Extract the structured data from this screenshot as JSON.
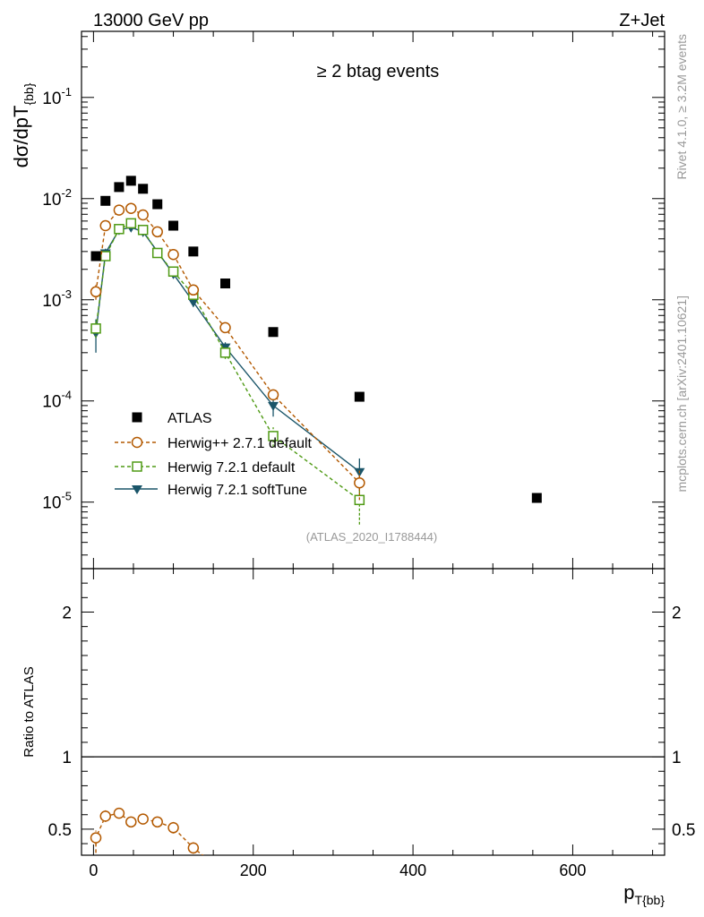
{
  "chart_data": {
    "type": "scatter",
    "header_left": "13000 GeV pp",
    "header_right": "Z+Jet",
    "title": "≥ 2 btag events",
    "ylabel_main": "dσ/dpT",
    "ylabel_main_sub": "{bb}",
    "ylabel_ratio": "Ratio to ATLAS",
    "xlabel": "p",
    "xlabel_sub": "T{bb}",
    "analysis_label": "(ATLAS_2020_I1788444)",
    "side_label_top": "Rivet 4.1.0, ≥ 3.2M events",
    "side_label_bottom": "mcplots.cern.ch [arXiv:2401.10621]",
    "x_range": [
      -15,
      715
    ],
    "y_range_main": [
      2.2e-06,
      0.45
    ],
    "y_range_ratio": [
      0.32,
      2.3
    ],
    "x_tick_labels": [
      "0",
      "200",
      "400",
      "600"
    ],
    "y_tick_labels_main": [
      "10^-5",
      "10^-4",
      "10^-3",
      "10^-2",
      "10^-1"
    ],
    "y_tick_labels_ratio": [
      "0.5",
      "1",
      "2"
    ],
    "series": [
      {
        "name": "ATLAS",
        "color": "#000000",
        "marker": "square-filled",
        "x": [
          3,
          15,
          32,
          47,
          62,
          80,
          100,
          125,
          165,
          225,
          333,
          555
        ],
        "y": [
          0.0027,
          0.0095,
          0.013,
          0.015,
          0.0125,
          0.0088,
          0.0054,
          0.003,
          0.00145,
          0.00048,
          0.00011,
          1.1e-05
        ]
      },
      {
        "name": "Herwig++ 2.7.1 default",
        "color": "#b35900",
        "marker": "circle-open",
        "line": "dashed",
        "x": [
          3,
          15,
          32,
          47,
          62,
          80,
          100,
          125,
          165,
          225,
          333
        ],
        "y": [
          0.0012,
          0.0054,
          0.0077,
          0.008,
          0.0069,
          0.0047,
          0.0028,
          0.00125,
          0.00053,
          0.000115,
          1.55e-05
        ],
        "yerr": [
          0.0002,
          0.0004,
          0.0004,
          0.0004,
          0.0004,
          0.0003,
          0.0002,
          0.0001,
          4e-05,
          1.2e-05,
          5e-06
        ],
        "ratio": [
          0.44,
          0.59,
          0.61,
          0.55,
          0.57,
          0.55,
          0.51,
          0.37
        ],
        "ratio_err": [
          0.05,
          0.04,
          0.035,
          0.035,
          0.035,
          0.035,
          0.04,
          0.04
        ]
      },
      {
        "name": "Herwig 7.2.1 default",
        "color": "#4f9a14",
        "marker": "square-open",
        "line": "dashed",
        "x": [
          3,
          15,
          32,
          47,
          62,
          80,
          100,
          125,
          165,
          225,
          333
        ],
        "y": [
          0.00052,
          0.0027,
          0.005,
          0.0057,
          0.0049,
          0.0029,
          0.0019,
          0.00112,
          0.0003,
          4.5e-05,
          1.05e-05
        ],
        "yerr": [
          0.0001,
          0.0003,
          0.0003,
          0.0003,
          0.0003,
          0.0002,
          0.00015,
          0.0001,
          4e-05,
          1e-05,
          4.5e-06
        ]
      },
      {
        "name": "Herwig 7.2.1 softTune",
        "color": "#1a5569",
        "marker": "triangle-down-filled",
        "line": "solid",
        "x": [
          3,
          15,
          32,
          47,
          62,
          80,
          100,
          125,
          165,
          225,
          333
        ],
        "y": [
          0.00047,
          0.0029,
          0.0049,
          0.0052,
          0.0047,
          0.003,
          0.0018,
          0.00095,
          0.00034,
          9e-05,
          2e-05
        ],
        "yerr": [
          0.00017,
          0.0003,
          0.0003,
          0.0003,
          0.0003,
          0.0002,
          0.00015,
          0.0001,
          4e-05,
          2e-05,
          7e-06
        ]
      }
    ]
  }
}
